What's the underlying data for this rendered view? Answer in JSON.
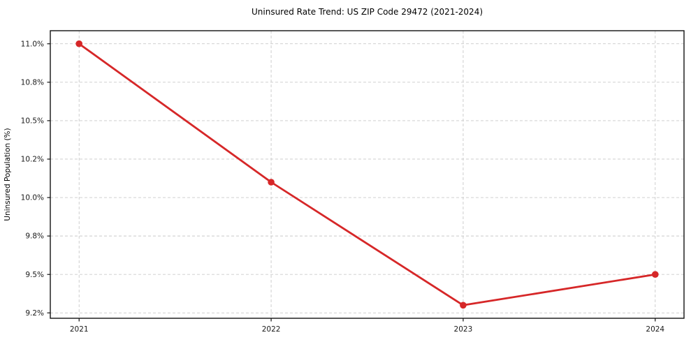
{
  "chart_data": {
    "type": "line",
    "title": "Uninsured Rate Trend: US ZIP Code 29472 (2021-2024)",
    "xlabel": "",
    "ylabel": "Uninsured Population (%)",
    "x": [
      2021,
      2022,
      2023,
      2024
    ],
    "values": [
      11.0,
      10.1,
      9.3,
      9.5
    ],
    "x_tick_labels": [
      "2021",
      "2022",
      "2023",
      "2024"
    ],
    "y_ticks": [
      {
        "value": 9.25,
        "label": "9.2%"
      },
      {
        "value": 9.5,
        "label": "9.5%"
      },
      {
        "value": 9.75,
        "label": "9.8%"
      },
      {
        "value": 10.0,
        "label": "10.0%"
      },
      {
        "value": 10.25,
        "label": "10.2%"
      },
      {
        "value": 10.5,
        "label": "10.5%"
      },
      {
        "value": 10.75,
        "label": "10.8%"
      },
      {
        "value": 11.0,
        "label": "11.0%"
      }
    ],
    "xlim": [
      2020.85,
      2024.15
    ],
    "ylim": [
      9.215,
      11.085
    ],
    "grid": true,
    "grid_color": "#c9c9c9",
    "line_color": "#d62728",
    "marker": "circle",
    "marker_radius": 4.8,
    "legend": "none",
    "background": "#ffffff"
  }
}
